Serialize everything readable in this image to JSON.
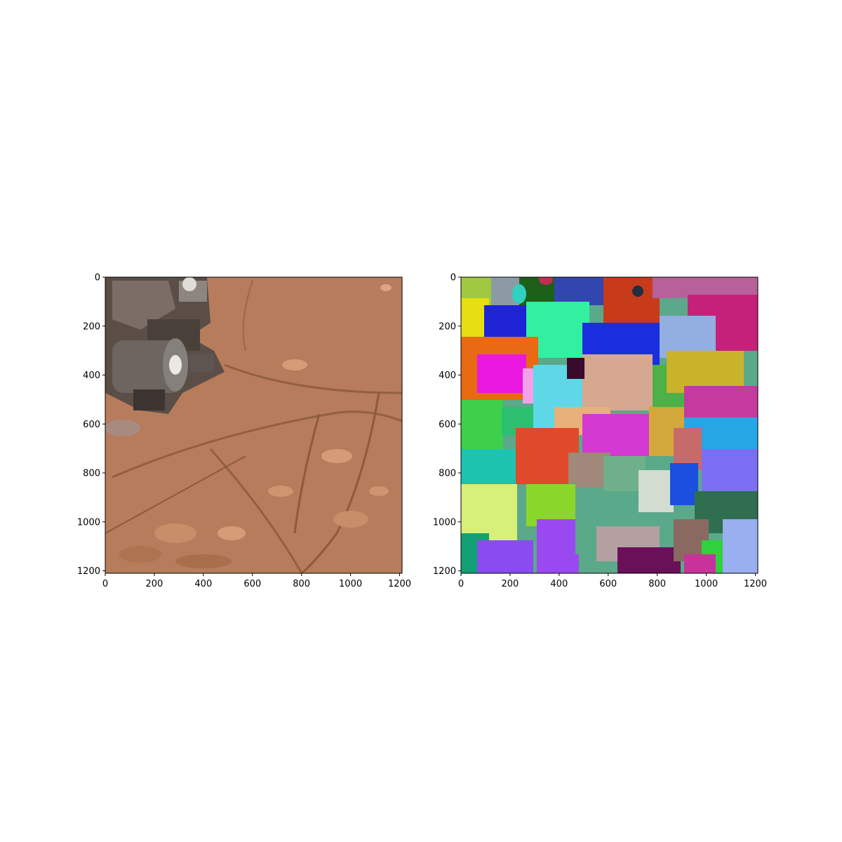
{
  "panels": [
    {
      "id": "photo",
      "kind": "image",
      "content": "martian-rock-surface-with-rover-arm",
      "colors": {
        "ground": "#b9805f",
        "ground_dark": "#8a5638",
        "ground_light": "#d49d78",
        "hardware": "#6d6560"
      },
      "xlim": [
        0,
        1210
      ],
      "ylim": [
        1210,
        0
      ],
      "xticks": [
        0,
        200,
        400,
        600,
        800,
        1000,
        1200
      ],
      "yticks": [
        0,
        200,
        400,
        600,
        800,
        1000,
        1200
      ]
    },
    {
      "id": "segmentation",
      "kind": "image",
      "content": "segmentation-mask-colored-regions",
      "colors": {
        "palette": [
          "#e83c2c",
          "#2fbf9a",
          "#1a2ee0",
          "#d43ad1",
          "#8bd62a",
          "#b1a0d8",
          "#f07b2b",
          "#2f6e4e",
          "#9a49f0",
          "#d3b43a",
          "#5ed8e6",
          "#6a1059",
          "#c7339a",
          "#30d23c",
          "#f2a0e8",
          "#1e5f1a"
        ]
      },
      "xlim": [
        0,
        1210
      ],
      "ylim": [
        1210,
        0
      ],
      "xticks": [
        0,
        200,
        400,
        600,
        800,
        1000,
        1200
      ],
      "yticks": [
        0,
        200,
        400,
        600,
        800,
        1000,
        1200
      ]
    }
  ]
}
